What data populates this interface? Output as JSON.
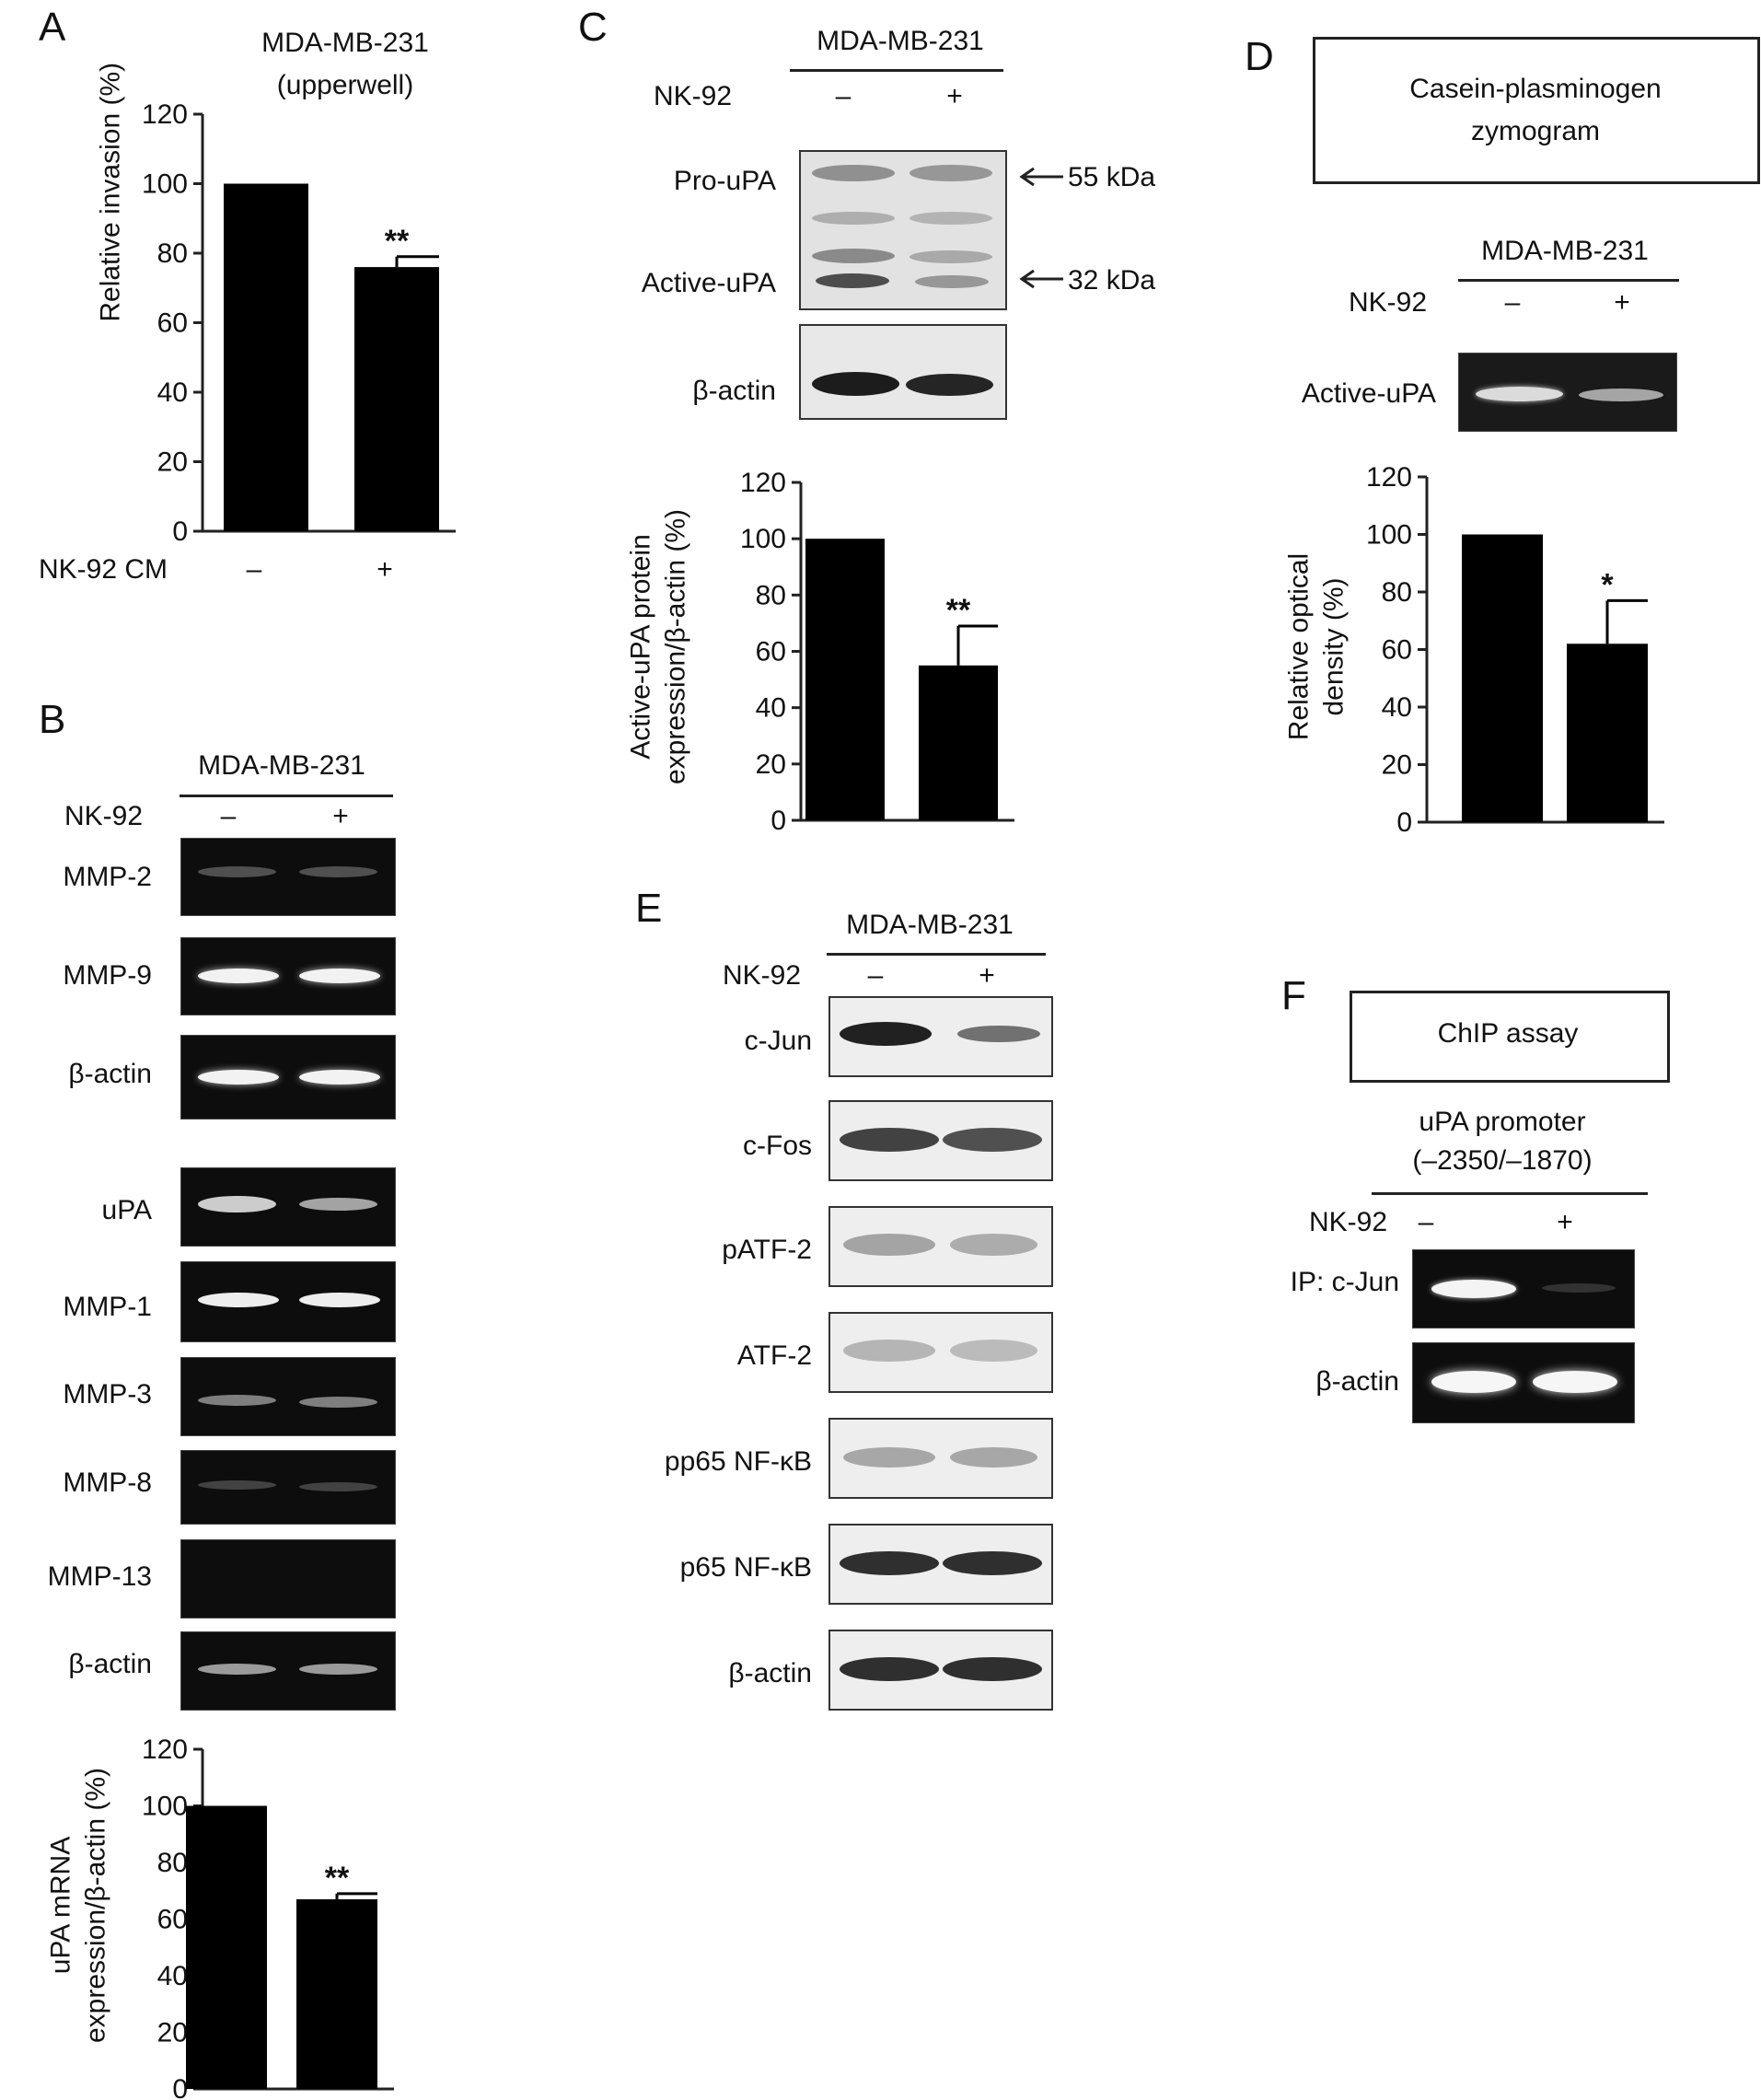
{
  "labels": {
    "cell_line": "MDA-MB-231",
    "minus": "–",
    "plus": "+",
    "beta_actin": "β-actin"
  },
  "panel_a": {
    "letter": "A",
    "title_line1": "MDA-MB-231",
    "title_line2": "(upperwell)",
    "treatment_label": "NK-92 CM"
  },
  "panel_b": {
    "letter": "B",
    "treatment_label": "NK-92",
    "gels_group1": [
      "MMP-2",
      "MMP-9",
      "β-actin"
    ],
    "gels_group2": [
      "uPA",
      "MMP-1",
      "MMP-3",
      "MMP-8",
      "MMP-13",
      "β-actin"
    ]
  },
  "panel_c": {
    "letter": "C",
    "treatment_label": "NK-92",
    "pro_upa": "Pro-uPA",
    "active_upa": "Active-uPA",
    "marker_55": "55 kDa",
    "marker_32": "32 kDa"
  },
  "panel_d": {
    "letter": "D",
    "box_line1": "Casein-plasminogen",
    "box_line2": "zymogram",
    "treatment_label": "NK-92",
    "band_label": "Active-uPA"
  },
  "panel_e": {
    "letter": "E",
    "treatment_label": "NK-92",
    "blots": [
      "c-Jun",
      "c-Fos",
      "pATF-2",
      "ATF-2",
      "pp65 NF-κB",
      "p65 NF-κB",
      "β-actin"
    ]
  },
  "panel_f": {
    "letter": "F",
    "box_label": "ChIP assay",
    "promoter_line1": "uPA promoter",
    "promoter_line2": "(–2350/–1870)",
    "treatment_label": "NK-92",
    "ip_label": "IP: c-Jun",
    "actin_label": "β-actin"
  },
  "chart_data": [
    {
      "id": "A",
      "type": "bar",
      "categories": [
        "–",
        "+"
      ],
      "values": [
        100,
        76
      ],
      "errors": [
        0,
        3
      ],
      "significance": [
        "",
        "**"
      ],
      "ylabel": "Relative invasion (%)",
      "ylim": [
        0,
        120
      ],
      "yticks": [
        0,
        20,
        40,
        60,
        80,
        100,
        120
      ]
    },
    {
      "id": "B",
      "type": "bar",
      "categories": [
        "–",
        "+"
      ],
      "values": [
        100,
        67
      ],
      "errors": [
        0,
        2
      ],
      "significance": [
        "",
        "**"
      ],
      "ylabel_lines": [
        "uPA mRNA",
        "expression/β-actin (%)"
      ],
      "ylim": [
        0,
        120
      ],
      "yticks": [
        0,
        20,
        40,
        60,
        80,
        100,
        120
      ]
    },
    {
      "id": "C",
      "type": "bar",
      "categories": [
        "–",
        "+"
      ],
      "values": [
        100,
        55
      ],
      "errors": [
        0,
        14
      ],
      "significance": [
        "",
        "**"
      ],
      "ylabel_lines": [
        "Active-uPA protein",
        "expression/β-actin (%)"
      ],
      "ylim": [
        0,
        120
      ],
      "yticks": [
        0,
        20,
        40,
        60,
        80,
        100,
        120
      ]
    },
    {
      "id": "D",
      "type": "bar",
      "categories": [
        "–",
        "+"
      ],
      "values": [
        100,
        62
      ],
      "errors": [
        0,
        15
      ],
      "significance": [
        "",
        "*"
      ],
      "ylabel_lines": [
        "Relative optical",
        "density (%)"
      ],
      "ylim": [
        0,
        120
      ],
      "yticks": [
        0,
        20,
        40,
        60,
        80,
        100,
        120
      ]
    }
  ]
}
